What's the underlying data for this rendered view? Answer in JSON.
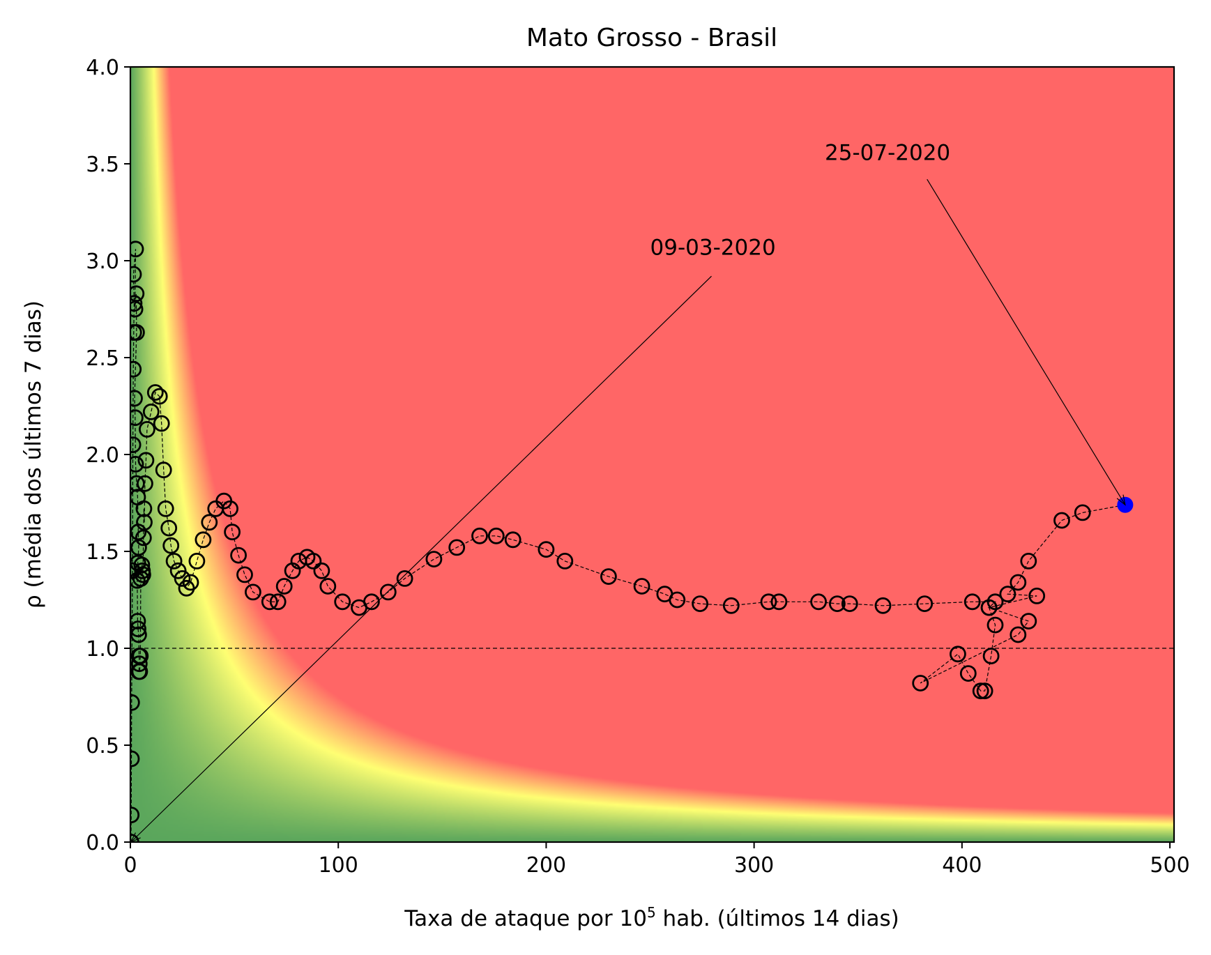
{
  "chart_data": {
    "type": "scatter",
    "title": "Mato Grosso - Brasil",
    "xlabel_main": "Taxa de ataque por 10",
    "xlabel_sup": "5",
    "xlabel_rest": " hab. (últimos 14 dias)",
    "ylabel": "ρ (média dos últimos 7 dias)",
    "xlim": [
      0,
      502
    ],
    "ylim": [
      0,
      4
    ],
    "xticks": [
      0,
      100,
      200,
      300,
      400,
      500
    ],
    "yticks": [
      0.0,
      0.5,
      1.0,
      1.5,
      2.0,
      2.5,
      3.0,
      3.5,
      4.0
    ],
    "ytick_labels": [
      "0.0",
      "0.5",
      "1.0",
      "1.5",
      "2.0",
      "2.5",
      "3.0",
      "3.5",
      "4.0"
    ],
    "reference_line_y": 1.0,
    "background": {
      "type": "risk-gradient",
      "colors": {
        "low": "#5aa65c",
        "mid": "#ffff73",
        "high": "#ff6666"
      }
    },
    "series": [
      {
        "marker": "open-circle",
        "color": "#000000",
        "points": [
          [
            0.3,
            0.0
          ],
          [
            0.4,
            0.14
          ],
          [
            0.5,
            0.43
          ],
          [
            0.6,
            0.72
          ],
          [
            1.0,
            1.4
          ],
          [
            1.2,
            2.05
          ],
          [
            1.4,
            2.44
          ],
          [
            1.6,
            2.63
          ],
          [
            1.8,
            2.78
          ],
          [
            1.5,
            2.93
          ],
          [
            2.5,
            3.06
          ],
          [
            2.2,
            2.75
          ],
          [
            2.8,
            2.83
          ],
          [
            3.0,
            2.63
          ],
          [
            2.0,
            2.29
          ],
          [
            2.3,
            2.19
          ],
          [
            2.5,
            1.95
          ],
          [
            3.0,
            1.85
          ],
          [
            3.5,
            1.78
          ],
          [
            3.8,
            1.6
          ],
          [
            4.0,
            1.52
          ],
          [
            3.6,
            1.44
          ],
          [
            3.3,
            1.35
          ],
          [
            3.5,
            1.14
          ],
          [
            3.7,
            1.1
          ],
          [
            4.0,
            1.07
          ],
          [
            4.2,
            0.96
          ],
          [
            4.3,
            0.92
          ],
          [
            4.1,
            0.88
          ],
          [
            4.5,
            0.88
          ],
          [
            4.8,
            0.96
          ],
          [
            5.0,
            1.36
          ],
          [
            5.5,
            1.43
          ],
          [
            5.8,
            1.4
          ],
          [
            6.0,
            1.38
          ],
          [
            6.3,
            1.57
          ],
          [
            6.5,
            1.72
          ],
          [
            6.7,
            1.65
          ],
          [
            7.0,
            1.85
          ],
          [
            7.5,
            1.97
          ],
          [
            8.0,
            2.13
          ],
          [
            10.0,
            2.22
          ],
          [
            12.0,
            2.32
          ],
          [
            14.0,
            2.3
          ],
          [
            15.0,
            2.16
          ],
          [
            16.0,
            1.92
          ],
          [
            17.0,
            1.72
          ],
          [
            18.5,
            1.62
          ],
          [
            19.5,
            1.53
          ],
          [
            21.0,
            1.45
          ],
          [
            23.0,
            1.4
          ],
          [
            25.0,
            1.36
          ],
          [
            27.0,
            1.31
          ],
          [
            29.0,
            1.34
          ],
          [
            32.0,
            1.45
          ],
          [
            35.0,
            1.56
          ],
          [
            38.0,
            1.65
          ],
          [
            41.0,
            1.72
          ],
          [
            45.0,
            1.76
          ],
          [
            48.0,
            1.72
          ],
          [
            49.0,
            1.6
          ],
          [
            52.0,
            1.48
          ],
          [
            55.0,
            1.38
          ],
          [
            59.0,
            1.29
          ],
          [
            67.0,
            1.24
          ],
          [
            71.0,
            1.24
          ],
          [
            74.0,
            1.32
          ],
          [
            78.0,
            1.4
          ],
          [
            81.0,
            1.45
          ],
          [
            85.0,
            1.47
          ],
          [
            88.0,
            1.45
          ],
          [
            92.0,
            1.4
          ],
          [
            95.0,
            1.32
          ],
          [
            102.0,
            1.24
          ],
          [
            110.0,
            1.21
          ],
          [
            116.0,
            1.24
          ],
          [
            124.0,
            1.29
          ],
          [
            132.0,
            1.36
          ],
          [
            146.0,
            1.46
          ],
          [
            157.0,
            1.52
          ],
          [
            168.0,
            1.58
          ],
          [
            176.0,
            1.58
          ],
          [
            184.0,
            1.56
          ],
          [
            200.0,
            1.51
          ],
          [
            209.0,
            1.45
          ],
          [
            230.0,
            1.37
          ],
          [
            246.0,
            1.32
          ],
          [
            257.0,
            1.28
          ],
          [
            263.0,
            1.25
          ],
          [
            274.0,
            1.23
          ],
          [
            289.0,
            1.22
          ],
          [
            307.0,
            1.24
          ],
          [
            312.0,
            1.24
          ],
          [
            331.0,
            1.24
          ],
          [
            340.0,
            1.23
          ],
          [
            346.0,
            1.23
          ],
          [
            362.0,
            1.22
          ],
          [
            382.0,
            1.23
          ],
          [
            405.0,
            1.24
          ],
          [
            416.0,
            1.24
          ],
          [
            413.0,
            1.21
          ],
          [
            416.0,
            1.12
          ],
          [
            414.0,
            0.96
          ],
          [
            411.0,
            0.78
          ],
          [
            409.0,
            0.78
          ],
          [
            403.0,
            0.87
          ],
          [
            398.0,
            0.97
          ],
          [
            380.0,
            0.82
          ],
          [
            427.0,
            1.07
          ],
          [
            432.0,
            1.14
          ],
          [
            413.0,
            1.21
          ],
          [
            436.0,
            1.27
          ],
          [
            422.0,
            1.28
          ],
          [
            427.0,
            1.34
          ],
          [
            432.0,
            1.45
          ],
          [
            448.0,
            1.66
          ],
          [
            458.0,
            1.7
          ]
        ]
      },
      {
        "marker": "filled-circle",
        "color": "#0000ff",
        "points": [
          [
            478.5,
            1.74
          ]
        ]
      }
    ],
    "annotations": [
      {
        "text": "09-03-2020",
        "text_at": [
          250.0,
          3.03
        ],
        "arrow_from": [
          279.5,
          2.92
        ],
        "arrow_to": [
          0.3,
          0.0
        ]
      },
      {
        "text": "25-07-2020",
        "text_at": [
          334.0,
          3.52
        ],
        "arrow_from": [
          383.2,
          3.42
        ],
        "arrow_to": [
          478.5,
          1.74
        ]
      }
    ]
  }
}
